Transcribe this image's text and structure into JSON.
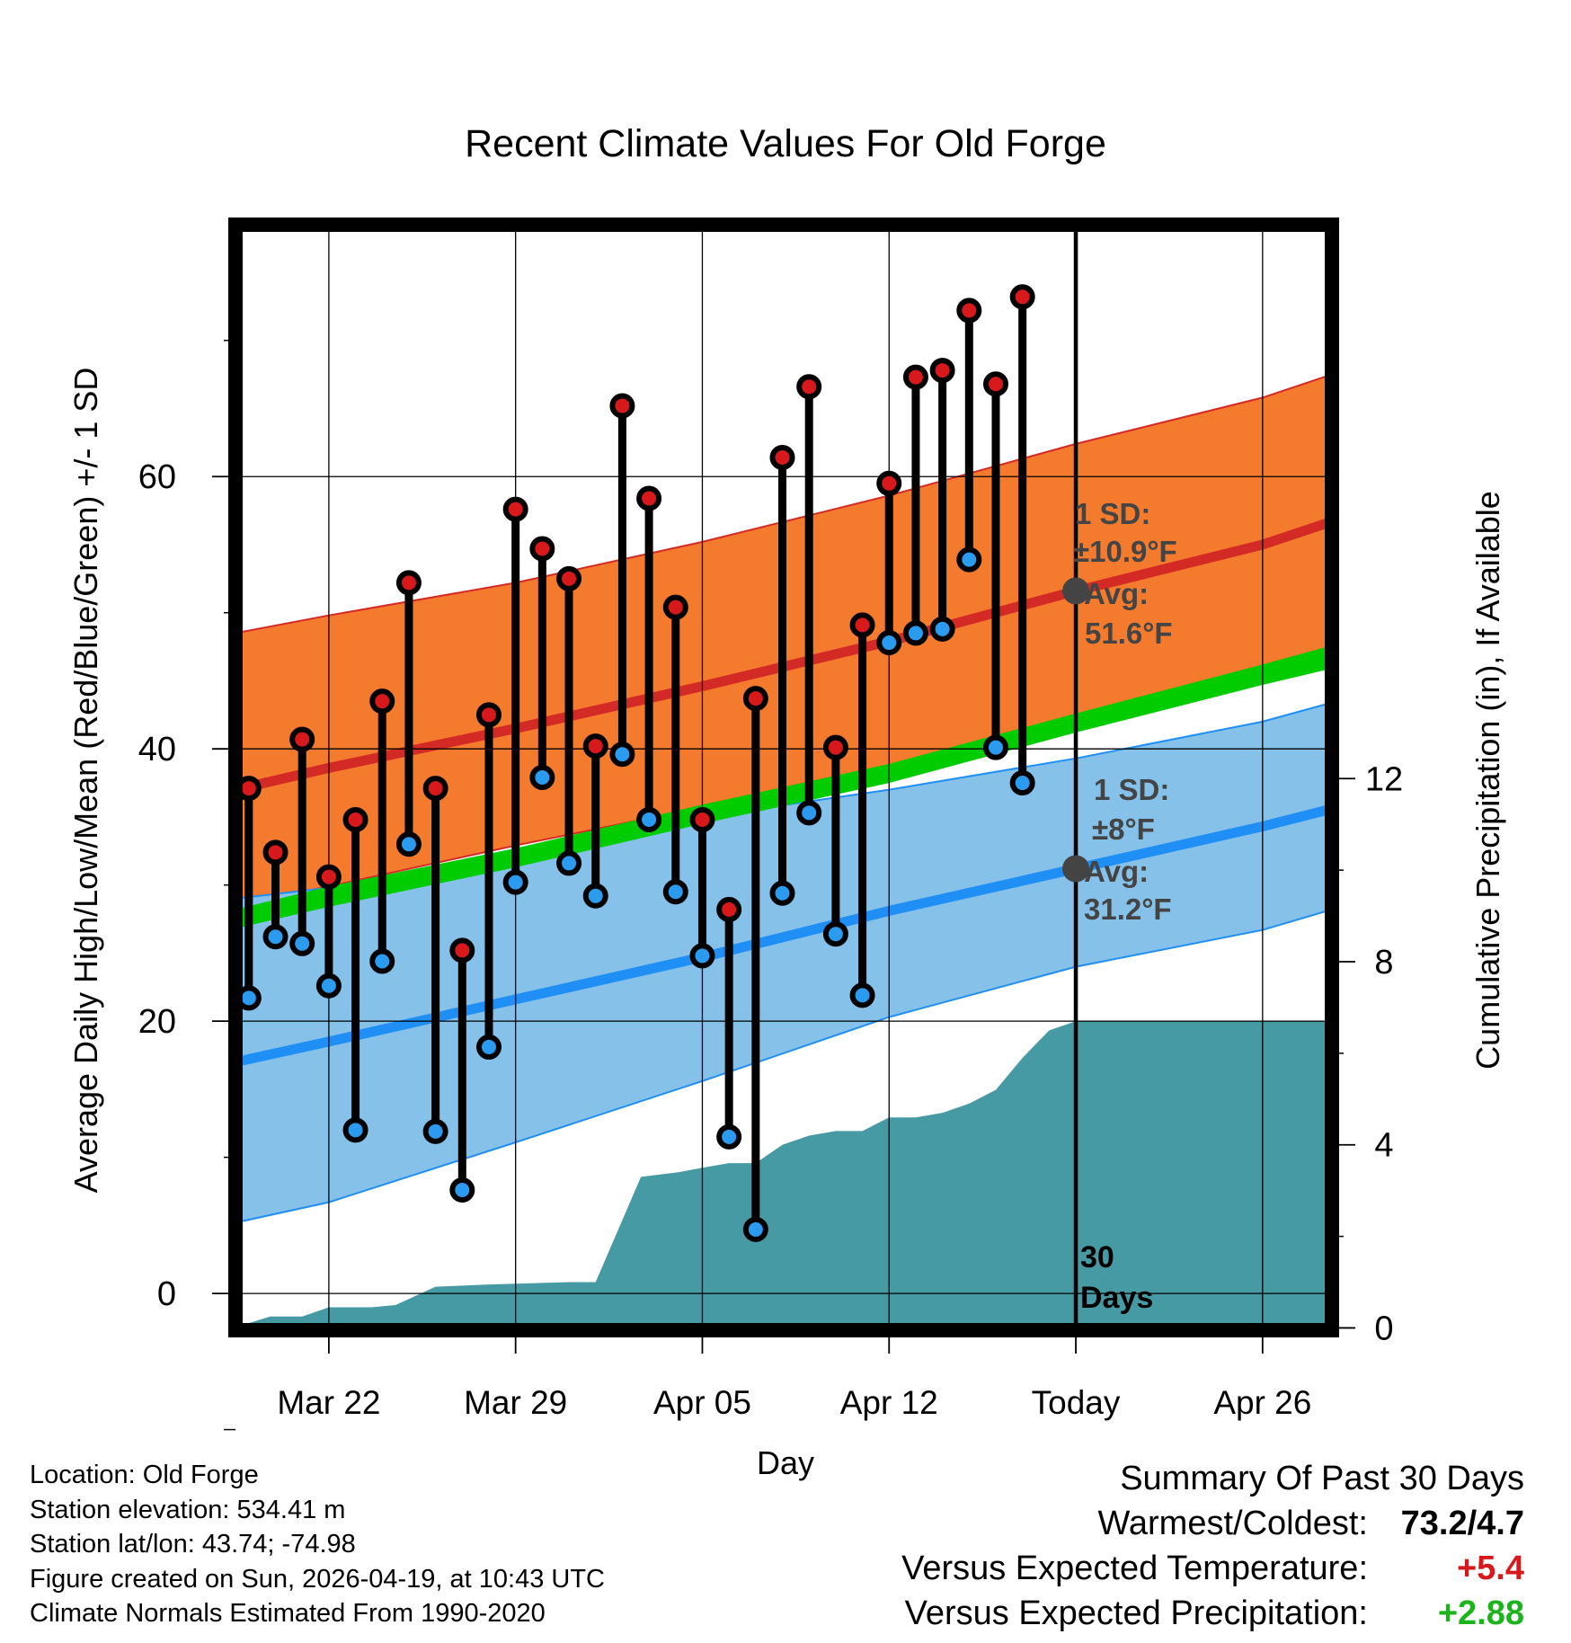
{
  "chart_data": {
    "type": "line",
    "title": "Recent Climate Values For Old Forge",
    "xlabel": "Day",
    "ylabel_left": "Average Daily High/Low/Mean (Red/Blue/Green) +/- 1 SD",
    "ylabel_right": "Cumulative Precipitation (in), If Available",
    "y_left_range": [
      -2.7,
      78.5
    ],
    "y_right_range": [
      -0.05,
      24.1
    ],
    "y_left_ticks": [
      0,
      20,
      40,
      60
    ],
    "y_left_tick_labels": [
      "0",
      "20",
      "40",
      "60"
    ],
    "y_right_ticks": [
      0,
      4,
      8,
      12
    ],
    "y_right_tick_labels": [
      "0",
      "4",
      "8",
      "12"
    ],
    "x_range": [
      -3.5,
      37.6
    ],
    "x_ticks": [
      0,
      7,
      14,
      21,
      28,
      35
    ],
    "x_tick_labels": [
      "Mar 22",
      "Mar 29",
      "Apr 05",
      "Apr 12",
      "Today",
      "Apr 26"
    ],
    "days": [
      -3,
      -2,
      -1,
      0,
      1,
      2,
      3,
      4,
      5,
      6,
      7,
      8,
      9,
      10,
      11,
      12,
      13,
      14,
      15,
      16,
      17,
      18,
      19,
      20,
      21,
      22,
      23,
      24,
      25,
      26,
      27
    ],
    "daily_high": [
      37.1,
      32.4,
      40.7,
      30.6,
      34.8,
      43.5,
      52.2,
      37.1,
      25.2,
      42.5,
      57.6,
      54.7,
      52.5,
      40.2,
      65.2,
      58.4,
      50.4,
      34.8,
      28.2,
      43.7,
      61.4,
      66.6,
      40.1,
      49.1,
      59.5,
      67.3,
      67.8,
      72.2,
      66.8,
      73.2
    ],
    "daily_low": [
      21.7,
      26.2,
      25.7,
      22.6,
      12.0,
      24.4,
      33.0,
      11.9,
      7.6,
      18.1,
      30.2,
      37.9,
      31.6,
      29.2,
      39.6,
      34.8,
      29.5,
      24.8,
      11.5,
      4.7,
      29.4,
      35.3,
      26.4,
      21.9,
      47.8,
      48.5,
      48.8,
      53.9,
      40.1,
      37.5
    ],
    "precip_days": [
      -3.3,
      -2.2,
      -1.0,
      0,
      1.6,
      2.5,
      4.0,
      6.0,
      9.0,
      10.0,
      11.7,
      13.1,
      14.0,
      15.0,
      16.0,
      17.0,
      18.0,
      19.0,
      20.0,
      21.0,
      22.0,
      23.0,
      24.0,
      25.0,
      26.0,
      27.0,
      28.0,
      37.6
    ],
    "precip_cumulative": [
      0.05,
      0.25,
      0.25,
      0.45,
      0.45,
      0.5,
      0.9,
      0.95,
      1.0,
      1.0,
      3.3,
      3.4,
      3.5,
      3.6,
      3.6,
      4.0,
      4.2,
      4.3,
      4.3,
      4.6,
      4.6,
      4.7,
      4.9,
      5.2,
      5.9,
      6.5,
      6.7,
      6.7
    ],
    "normal_high": {
      "x": [
        -3.5,
        0,
        7,
        14,
        21,
        28,
        35,
        37.6
      ],
      "avg": [
        37.0,
        38.6,
        41.5,
        44.6,
        47.9,
        51.6,
        55.0,
        56.7
      ],
      "upper": [
        48.5,
        49.8,
        52.2,
        55.2,
        58.6,
        62.4,
        65.8,
        67.5
      ],
      "lower": [
        28.5,
        29.9,
        32.9,
        35.7,
        38.3,
        41.6,
        45.1,
        47.0
      ]
    },
    "normal_low": {
      "x": [
        -3.5,
        0,
        7,
        14,
        21,
        28,
        35,
        37.6
      ],
      "avg": [
        17.0,
        18.5,
        21.6,
        24.7,
        28.1,
        31.2,
        34.3,
        35.6
      ],
      "upper": [
        29.0,
        29.8,
        31.6,
        35.0,
        37.0,
        39.3,
        42.0,
        43.4
      ],
      "lower": [
        5.2,
        6.7,
        11.1,
        15.6,
        20.3,
        24.0,
        26.7,
        28.2
      ]
    },
    "normal_mean": {
      "x": [
        -3.5,
        0,
        7,
        14,
        21,
        28,
        35,
        37.6
      ],
      "lower": [
        26.8,
        28.4,
        31.3,
        34.5,
        37.5,
        41.2,
        44.7,
        45.9
      ],
      "upper": [
        28.2,
        29.9,
        32.7,
        35.9,
        38.9,
        42.6,
        46.2,
        47.6
      ]
    },
    "annotations": {
      "high_sd_title": "1 SD:",
      "high_sd_value": "±10.9°F",
      "high_avg_title": "Avg:",
      "high_avg_value": "51.6°F",
      "low_sd_title": "1 SD:",
      "low_sd_value": "±8°F",
      "low_avg_title": "Avg:",
      "low_avg_value": "31.2°F",
      "period_number": "30",
      "period_unit": "Days"
    },
    "colors": {
      "high_marker": "#d7191c",
      "low_marker": "#2b9bf0",
      "high_band": "#f47b2e",
      "high_line": "#d42a26",
      "low_band": "#85c1e9",
      "low_line": "#1f8ef5",
      "mean_band": "#00cc00",
      "precip": "#469aa3"
    }
  },
  "footer": {
    "location": "Location: Old Forge",
    "elevation": "Station elevation: 534.41 m",
    "latlon": "Station lat/lon: 43.74; -74.98",
    "created": "Figure created on Sun, 2026-04-19, at 10:43 UTC",
    "normals": "Climate Normals Estimated From 1990-2020"
  },
  "summary": {
    "title": "Summary Of Past 30 Days",
    "warmest_label": "Warmest/Coldest:",
    "warmest_value": "73.2/4.7",
    "temp_label": "Versus Expected Temperature:",
    "temp_value": "+5.4",
    "precip_label": "Versus Expected Precipitation:",
    "precip_value": "+2.88"
  }
}
